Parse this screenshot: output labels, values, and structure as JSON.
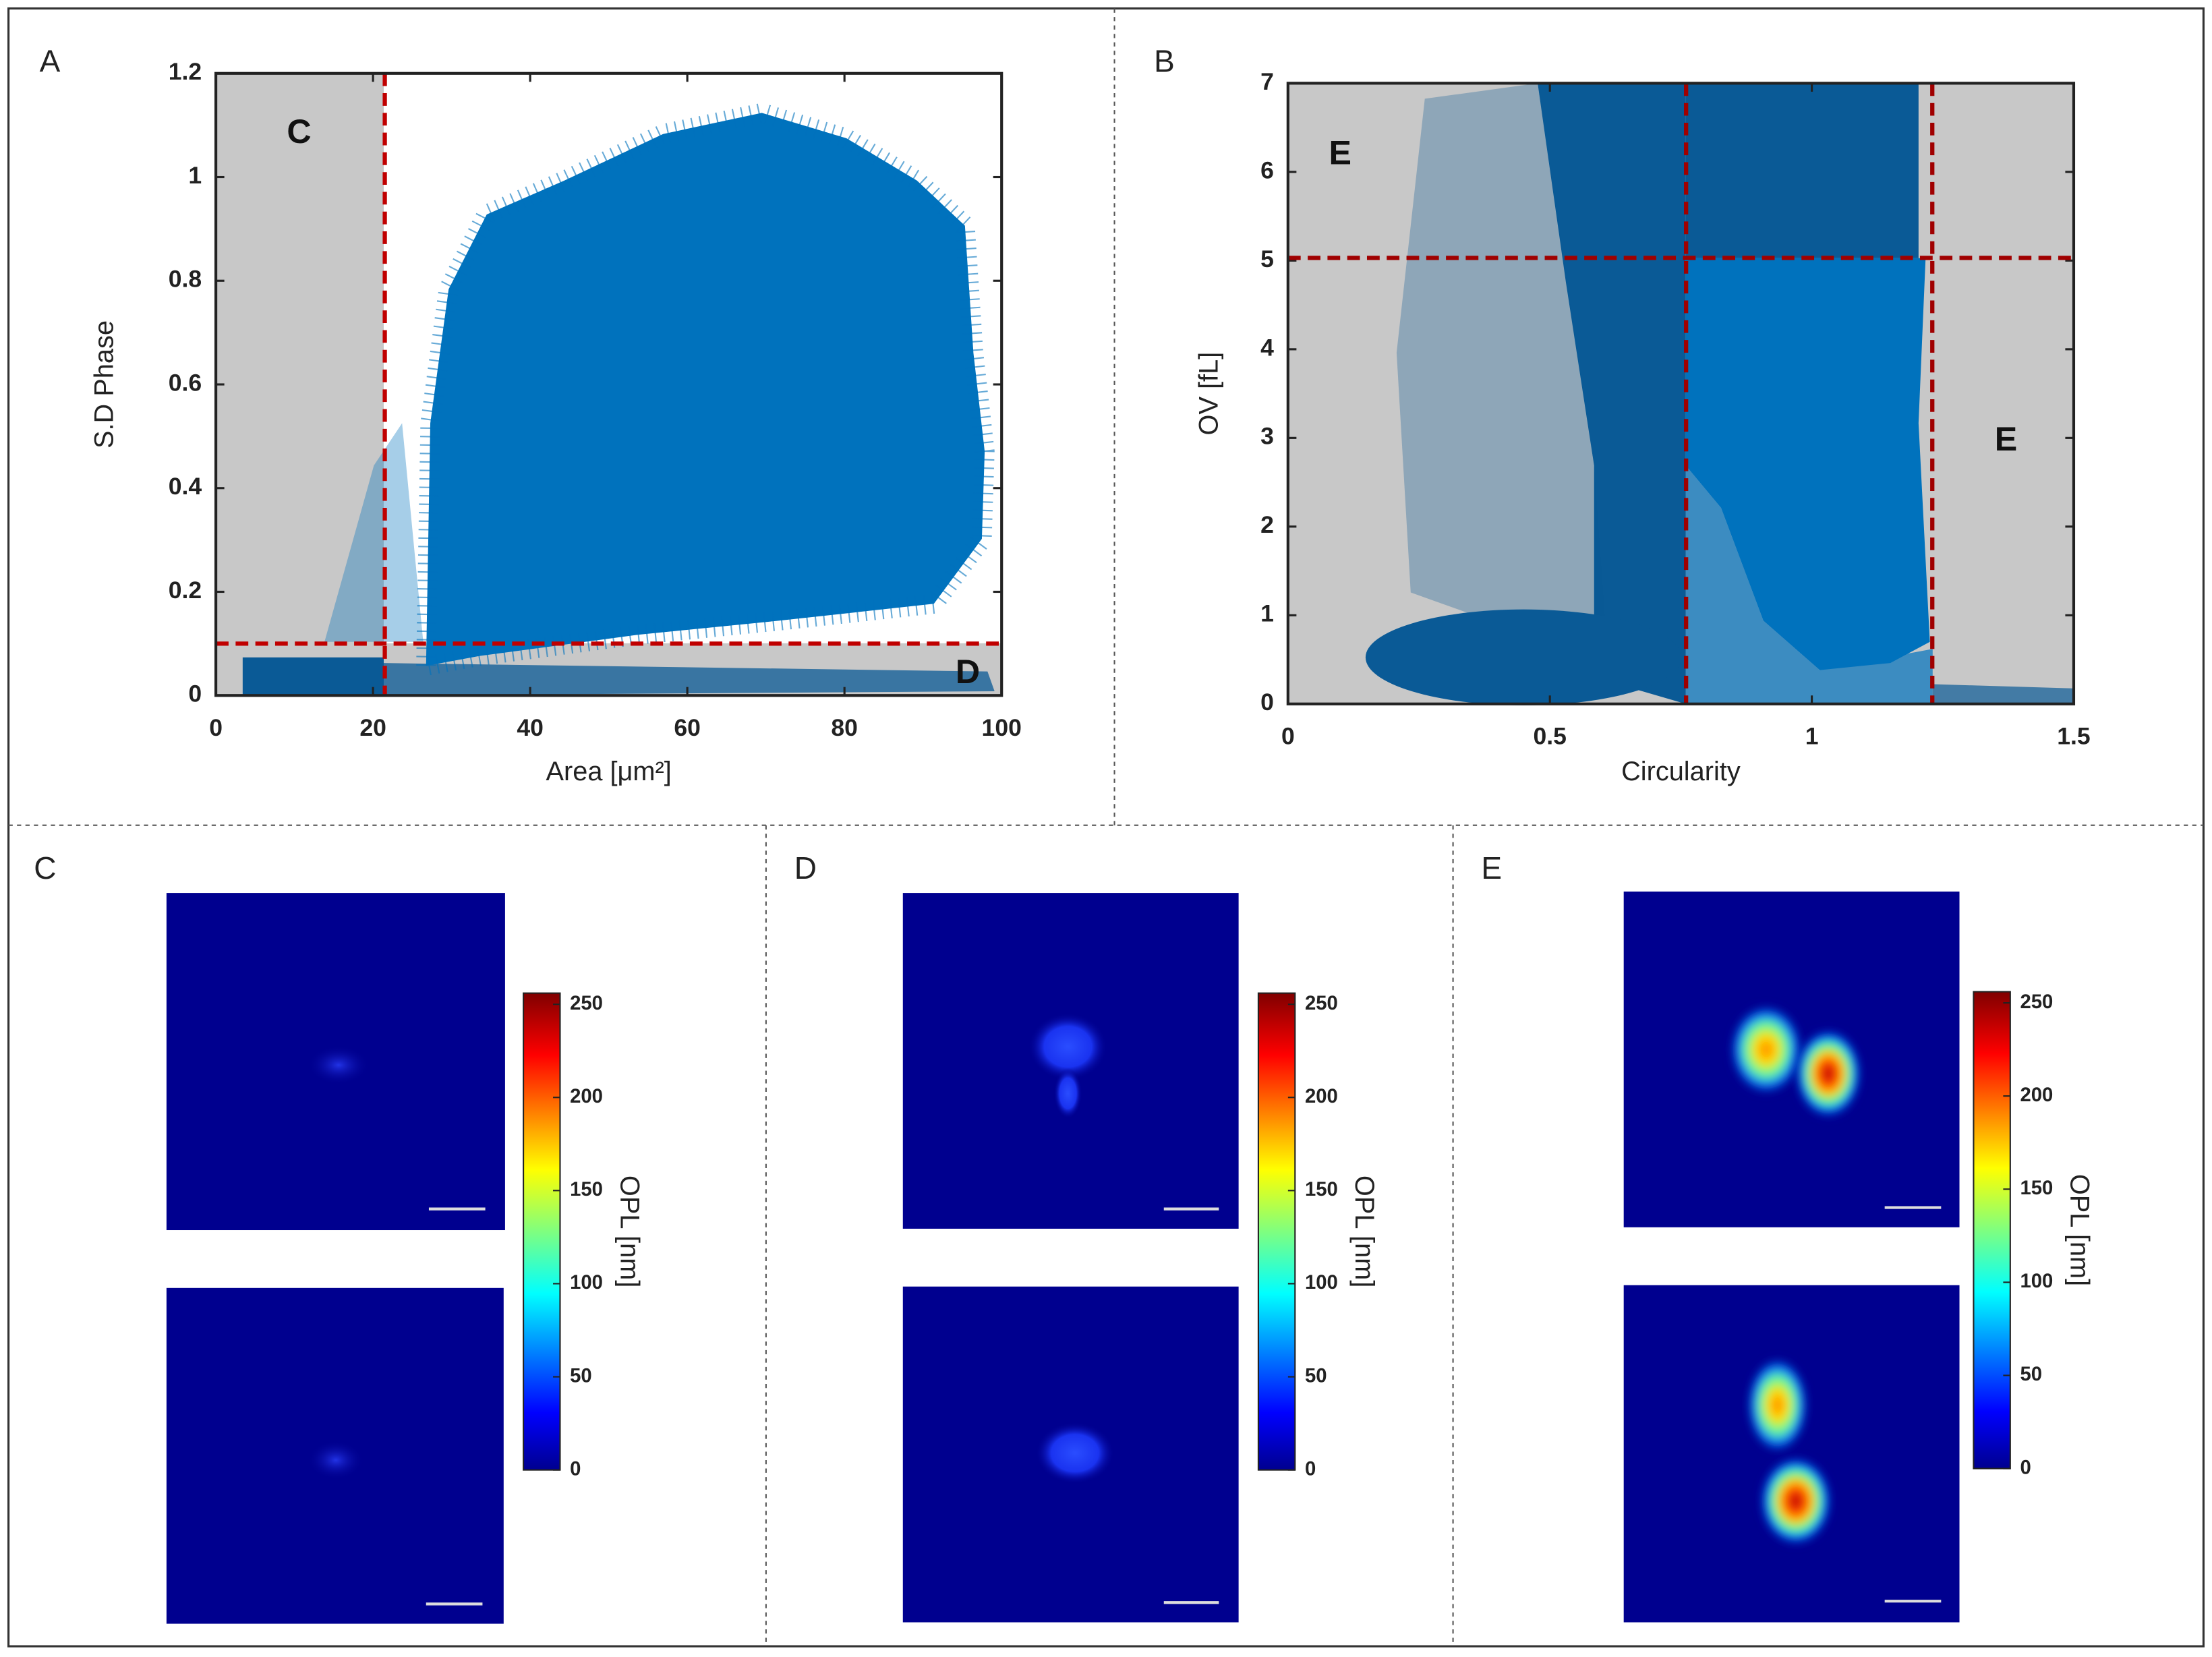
{
  "chart_data": [
    {
      "type": "scatter",
      "panel": "A",
      "xlabel": "Area [μm²]",
      "ylabel": "S.D Phase",
      "xlim": [
        0,
        100
      ],
      "ylim": [
        0,
        1.2
      ],
      "xticks": [
        0,
        20,
        40,
        60,
        80,
        100
      ],
      "yticks": [
        0,
        0.2,
        0.4,
        0.6,
        0.8,
        1,
        1.2
      ],
      "gates": {
        "x": [
          21.5
        ],
        "y": [
          0.1
        ]
      },
      "gate_color": "#c00000",
      "regions": [
        "C",
        "D"
      ],
      "color": "#0072bd"
    },
    {
      "type": "scatter",
      "panel": "B",
      "xlabel": "Circularity",
      "ylabel": "OV [fL]",
      "xlim": [
        0,
        1.5
      ],
      "ylim": [
        0,
        7
      ],
      "xticks": [
        0,
        0.5,
        1,
        1.5
      ],
      "yticks": [
        0,
        1,
        2,
        3,
        4,
        5,
        6,
        7
      ],
      "gates": {
        "x": [
          0.76,
          1.23
        ],
        "y": [
          5.03
        ]
      },
      "gate_color": "#a00000",
      "regions": [
        "E",
        "E"
      ],
      "color": "#0072bd"
    }
  ],
  "image_panels": [
    {
      "label": "C",
      "colorbar": {
        "label": "OPL [nm]",
        "lim": [
          0,
          256
        ],
        "ticks": [
          0,
          50,
          100,
          150,
          200,
          250
        ]
      }
    },
    {
      "label": "D",
      "colorbar": {
        "label": "OPL [nm]",
        "lim": [
          0,
          256
        ],
        "ticks": [
          0,
          50,
          100,
          150,
          200,
          250
        ]
      }
    },
    {
      "label": "E",
      "colorbar": {
        "label": "OPL [nm]",
        "lim": [
          0,
          256
        ],
        "ticks": [
          0,
          50,
          100,
          150,
          200,
          250
        ]
      }
    }
  ]
}
